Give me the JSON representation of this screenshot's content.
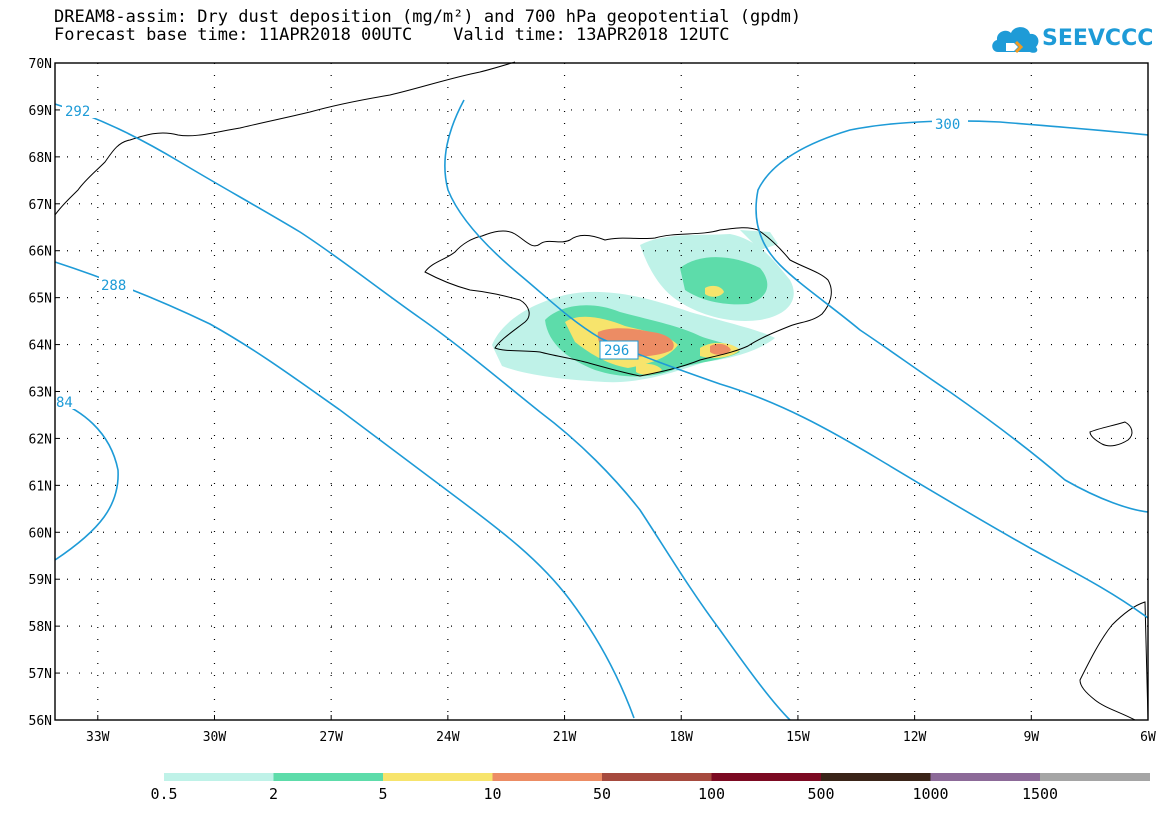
{
  "header": {
    "line1": "DREAM8-assim: Dry dust deposition (mg/m²) and 700 hPa geopotential (gpdm)",
    "line2": "Forecast base time: 11APR2018 00UTC    Valid time: 13APR2018 12UTC"
  },
  "logo": {
    "text": "SEEVCCC",
    "icon": "cloud-icon"
  },
  "map": {
    "lat_labels": [
      "70N",
      "69N",
      "68N",
      "67N",
      "66N",
      "65N",
      "64N",
      "63N",
      "62N",
      "61N",
      "60N",
      "59N",
      "58N",
      "57N",
      "56N"
    ],
    "lon_labels": [
      "33W",
      "30W",
      "27W",
      "24W",
      "21W",
      "18W",
      "15W",
      "12W",
      "9W",
      "6W"
    ],
    "lat_range": [
      56,
      70
    ],
    "lon_range": [
      -34.1,
      -6
    ],
    "grid": true,
    "contour_color": "#1e9bd7",
    "contour_labels": [
      "292",
      "288",
      "84",
      "296",
      "300"
    ]
  },
  "colorbar": {
    "colors": [
      "#bff2e8",
      "#5ddcaa",
      "#f7e46c",
      "#ec8c64",
      "#a64a3e",
      "#7c0a22",
      "#3a2418",
      "#8c6a98",
      "#a5a5a5"
    ],
    "labels": [
      "0.5",
      "2",
      "5",
      "10",
      "50",
      "100",
      "500",
      "1000",
      "1500"
    ]
  }
}
